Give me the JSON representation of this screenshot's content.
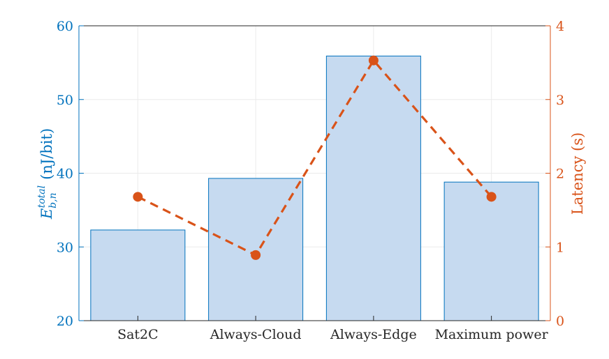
{
  "chart_data": {
    "type": "bar",
    "categories": [
      "Sat2C",
      "Always-Cloud",
      "Always-Edge",
      "Maximum power"
    ],
    "series": [
      {
        "values": [
          32.3,
          39.3,
          55.9,
          38.8
        ],
        "axis": "left",
        "kind": "bar"
      },
      {
        "values": [
          1.68,
          0.89,
          3.53,
          1.68
        ],
        "axis": "right",
        "kind": "line",
        "style": "dashed with circle markers"
      }
    ],
    "ylabel_left": {
      "base": "E",
      "sup": "total",
      "sub": "b,n",
      "unit": "(nJ/bit)"
    },
    "ylabel_right": "Latency (s)",
    "ylim_left": [
      20,
      60
    ],
    "ylim_right": [
      0,
      4
    ],
    "yticks_left": [
      "20",
      "30",
      "40",
      "50",
      "60"
    ],
    "yticks_right": [
      "0",
      "1",
      "2",
      "3",
      "4"
    ],
    "grid": true,
    "colors": {
      "left_axis": "#0072BD",
      "right_axis": "#D95319",
      "bar_fill": "#C6DAF0",
      "bar_edge": "#0072BD",
      "line": "#D95319"
    }
  }
}
